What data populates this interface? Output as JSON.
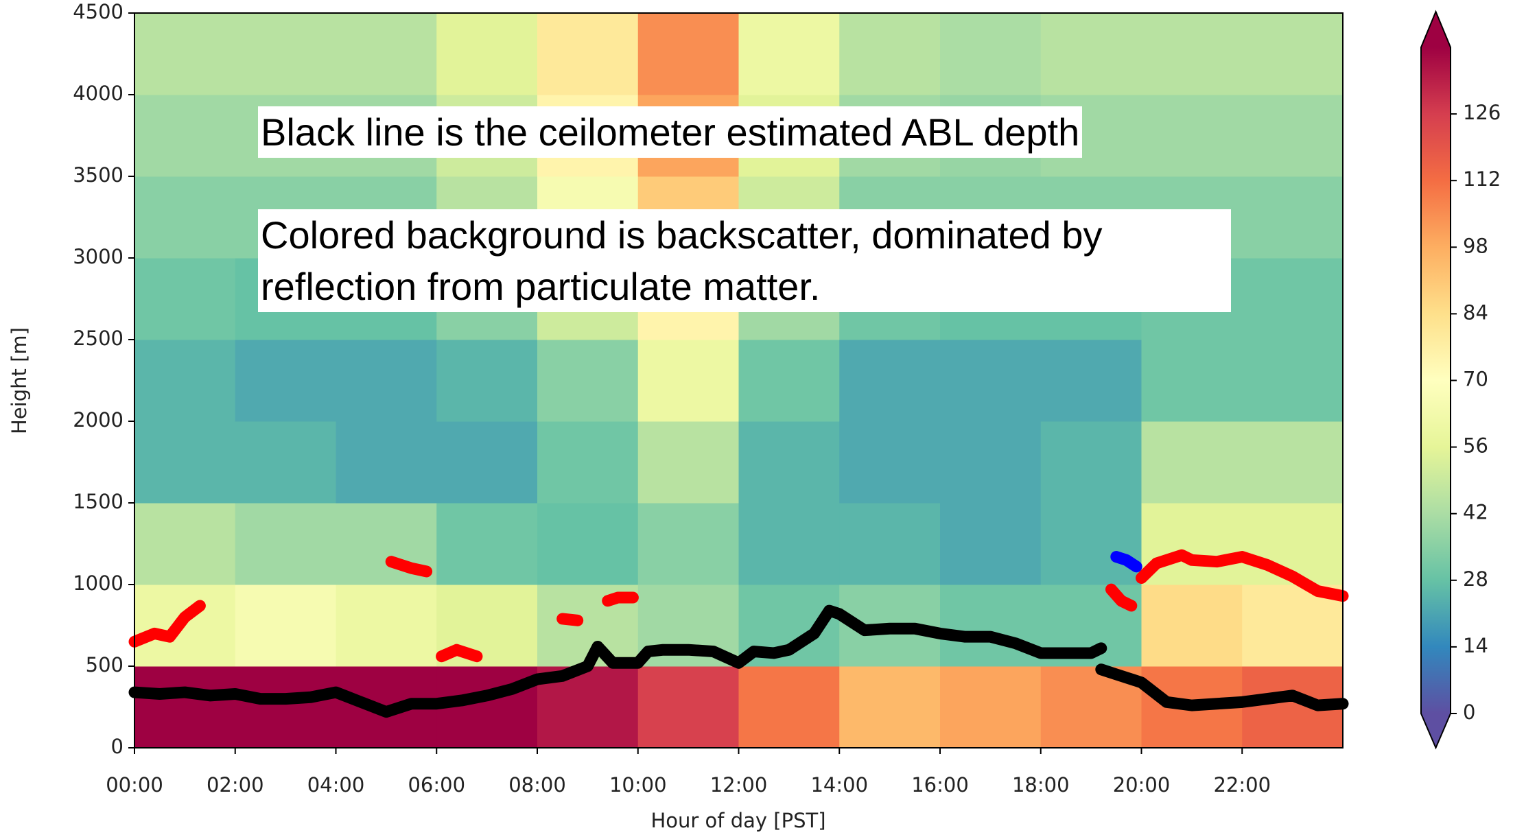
{
  "chart_data": {
    "type": "heatmap",
    "xlabel": "Hour of day [PST]",
    "ylabel": "Height [m]",
    "xlim": [
      0,
      24
    ],
    "xticks": [
      {
        "value": 0,
        "label": "00:00"
      },
      {
        "value": 2,
        "label": "02:00"
      },
      {
        "value": 4,
        "label": "04:00"
      },
      {
        "value": 6,
        "label": "06:00"
      },
      {
        "value": 8,
        "label": "08:00"
      },
      {
        "value": 10,
        "label": "10:00"
      },
      {
        "value": 12,
        "label": "12:00"
      },
      {
        "value": 14,
        "label": "14:00"
      },
      {
        "value": 16,
        "label": "16:00"
      },
      {
        "value": 18,
        "label": "18:00"
      },
      {
        "value": 20,
        "label": "20:00"
      },
      {
        "value": 22,
        "label": "22:00"
      }
    ],
    "ylim": [
      0,
      4500
    ],
    "yticks": [
      0,
      500,
      1000,
      1500,
      2000,
      2500,
      3000,
      3500,
      4000,
      4500
    ],
    "x_edges": [
      0,
      2,
      4,
      6,
      8,
      10,
      12,
      14,
      16,
      18,
      20,
      22,
      24
    ],
    "y_edges": [
      0,
      500,
      1000,
      1500,
      2000,
      2500,
      3000,
      3500,
      4000,
      4500
    ],
    "z": [
      [
        140,
        140,
        140,
        140,
        135,
        125,
        110,
        95,
        100,
        105,
        110,
        115
      ],
      [
        60,
        65,
        60,
        55,
        45,
        40,
        30,
        35,
        30,
        30,
        85,
        80
      ],
      [
        45,
        40,
        40,
        30,
        28,
        35,
        25,
        25,
        22,
        25,
        55,
        55
      ],
      [
        25,
        25,
        22,
        22,
        30,
        45,
        25,
        22,
        22,
        25,
        45,
        45
      ],
      [
        25,
        22,
        22,
        25,
        35,
        60,
        30,
        22,
        22,
        22,
        30,
        30
      ],
      [
        30,
        28,
        28,
        35,
        50,
        75,
        40,
        30,
        28,
        28,
        30,
        30
      ],
      [
        35,
        35,
        35,
        45,
        65,
        90,
        50,
        35,
        35,
        35,
        35,
        35
      ],
      [
        40,
        40,
        40,
        50,
        75,
        100,
        55,
        40,
        38,
        40,
        40,
        40
      ],
      [
        45,
        45,
        45,
        55,
        80,
        105,
        60,
        45,
        42,
        45,
        45,
        45
      ]
    ],
    "colormap": [
      "#5e4fa2",
      "#3288bd",
      "#66c2a5",
      "#abdda4",
      "#e6f598",
      "#ffffbf",
      "#fee08b",
      "#fdae61",
      "#f46d43",
      "#d53e4f",
      "#9e0142"
    ],
    "clim": [
      0,
      140
    ],
    "cticks": [
      0,
      14,
      28,
      42,
      56,
      70,
      84,
      98,
      112,
      126
    ],
    "series": [
      {
        "color": "#000000",
        "x": [
          0,
          0.5,
          1,
          1.5,
          2,
          2.5,
          3,
          3.5,
          4,
          4.5,
          5,
          5.5,
          6,
          6.5,
          7,
          7.5,
          8,
          8.5,
          9,
          9.2,
          9.5,
          10,
          10.2,
          10.5,
          11,
          11.5,
          12,
          12.3,
          12.7,
          13,
          13.5,
          13.8,
          14,
          14.5,
          15,
          15.5,
          16,
          16.5,
          17,
          17.5,
          18,
          18.5,
          19,
          19.2,
          null,
          19.2,
          19.5,
          20,
          20.5,
          21,
          21.5,
          22,
          22.5,
          23,
          23.5,
          24
        ],
        "values": [
          340,
          330,
          340,
          320,
          330,
          300,
          300,
          310,
          340,
          280,
          220,
          270,
          270,
          290,
          320,
          360,
          420,
          440,
          500,
          620,
          520,
          520,
          590,
          600,
          600,
          590,
          520,
          590,
          580,
          600,
          700,
          840,
          820,
          720,
          730,
          730,
          700,
          680,
          680,
          640,
          580,
          580,
          580,
          610,
          null,
          480,
          450,
          400,
          280,
          260,
          270,
          280,
          300,
          320,
          260,
          270
        ]
      },
      {
        "color": "#ff0000",
        "x": [
          0,
          0.4,
          0.7,
          1,
          1.3,
          null,
          5.1,
          5.5,
          5.8,
          null,
          6.1,
          6.4,
          6.8,
          null,
          8.5,
          8.8,
          null,
          9.4,
          9.6,
          9.9,
          null,
          19.4,
          19.6,
          19.8,
          null,
          20,
          20.3,
          20.8,
          21,
          21.5,
          22,
          22.5,
          23,
          23.5,
          24
        ],
        "values": [
          650,
          700,
          680,
          800,
          870,
          null,
          1140,
          1100,
          1080,
          null,
          560,
          600,
          560,
          null,
          790,
          780,
          null,
          900,
          920,
          920,
          null,
          970,
          900,
          870,
          null,
          1040,
          1130,
          1180,
          1150,
          1140,
          1170,
          1120,
          1050,
          960,
          930
        ]
      },
      {
        "color": "#0000ff",
        "x": [
          19.5,
          19.7,
          19.9
        ],
        "values": [
          1170,
          1150,
          1110
        ]
      }
    ],
    "annotations": [
      "Black line is the ceilometer estimated ABL depth",
      "Colored background is backscatter, dominated by reflection from particulate matter."
    ]
  }
}
